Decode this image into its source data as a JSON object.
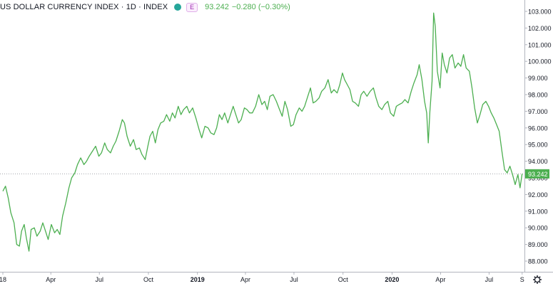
{
  "header": {
    "title": "US DOLLAR CURRENCY INDEX · 1D · INDEX",
    "badge": "E",
    "last_value": "93.242",
    "change": "−0.280 (−0.30%)",
    "colors": {
      "text_up": "#4caf50",
      "badge": "#9c27b0",
      "dot": "#26a69a"
    }
  },
  "chart_data": {
    "type": "line",
    "title": "US DOLLAR CURRENCY INDEX · 1D · INDEX",
    "xlabel": "",
    "ylabel": "",
    "ylim": [
      88.0,
      103.0
    ],
    "xlim": [
      "2018-01-01",
      "2020-08-31"
    ],
    "x_tick_labels": [
      {
        "date": "2018-01-01",
        "label": "18"
      },
      {
        "date": "2018-04-01",
        "label": "Apr"
      },
      {
        "date": "2018-07-01",
        "label": "Jul"
      },
      {
        "date": "2018-10-01",
        "label": "Oct"
      },
      {
        "date": "2019-01-01",
        "label": "2019"
      },
      {
        "date": "2019-04-01",
        "label": "Apr"
      },
      {
        "date": "2019-07-01",
        "label": "Jul"
      },
      {
        "date": "2019-10-01",
        "label": "Oct"
      },
      {
        "date": "2020-01-01",
        "label": "2020"
      },
      {
        "date": "2020-04-01",
        "label": "Apr"
      },
      {
        "date": "2020-07-01",
        "label": "Jul"
      },
      {
        "date": "2020-09-01",
        "label": "S"
      }
    ],
    "y_tick_labels": [
      "88.000",
      "89.000",
      "90.000",
      "91.000",
      "92.000",
      "93.000",
      "94.000",
      "95.000",
      "96.000",
      "97.000",
      "98.000",
      "99.000",
      "100.000",
      "101.000",
      "102.000",
      "103.000"
    ],
    "last_value_label": "93.242",
    "last_value": 93.242,
    "grid": false,
    "series": [
      {
        "color": "#4caf50",
        "points": [
          [
            "2018-01-01",
            92.2
          ],
          [
            "2018-01-06",
            92.5
          ],
          [
            "2018-01-11",
            91.8
          ],
          [
            "2018-01-16",
            90.9
          ],
          [
            "2018-01-22",
            90.3
          ],
          [
            "2018-01-27",
            89.0
          ],
          [
            "2018-02-01",
            88.9
          ],
          [
            "2018-02-05",
            89.8
          ],
          [
            "2018-02-10",
            90.2
          ],
          [
            "2018-02-14",
            89.4
          ],
          [
            "2018-02-19",
            88.6
          ],
          [
            "2018-02-23",
            89.9
          ],
          [
            "2018-03-01",
            90.0
          ],
          [
            "2018-03-06",
            89.5
          ],
          [
            "2018-03-12",
            89.8
          ],
          [
            "2018-03-17",
            90.3
          ],
          [
            "2018-03-22",
            89.8
          ],
          [
            "2018-03-27",
            89.3
          ],
          [
            "2018-04-02",
            90.2
          ],
          [
            "2018-04-08",
            89.7
          ],
          [
            "2018-04-13",
            89.9
          ],
          [
            "2018-04-18",
            89.6
          ],
          [
            "2018-04-23",
            90.7
          ],
          [
            "2018-04-29",
            91.5
          ],
          [
            "2018-05-05",
            92.4
          ],
          [
            "2018-05-10",
            93.0
          ],
          [
            "2018-05-16",
            93.3
          ],
          [
            "2018-05-21",
            93.8
          ],
          [
            "2018-05-27",
            94.2
          ],
          [
            "2018-06-02",
            93.8
          ],
          [
            "2018-06-07",
            94.0
          ],
          [
            "2018-06-12",
            94.3
          ],
          [
            "2018-06-18",
            94.6
          ],
          [
            "2018-06-24",
            94.9
          ],
          [
            "2018-06-30",
            94.3
          ],
          [
            "2018-07-05",
            94.5
          ],
          [
            "2018-07-11",
            95.1
          ],
          [
            "2018-07-16",
            94.7
          ],
          [
            "2018-07-22",
            94.5
          ],
          [
            "2018-07-27",
            94.9
          ],
          [
            "2018-08-01",
            95.2
          ],
          [
            "2018-08-07",
            95.8
          ],
          [
            "2018-08-13",
            96.5
          ],
          [
            "2018-08-17",
            96.3
          ],
          [
            "2018-08-22",
            95.5
          ],
          [
            "2018-08-28",
            94.9
          ],
          [
            "2018-09-03",
            95.3
          ],
          [
            "2018-09-08",
            94.7
          ],
          [
            "2018-09-14",
            94.8
          ],
          [
            "2018-09-19",
            94.4
          ],
          [
            "2018-09-25",
            94.1
          ],
          [
            "2018-09-30",
            94.9
          ],
          [
            "2018-10-04",
            95.5
          ],
          [
            "2018-10-09",
            95.8
          ],
          [
            "2018-10-14",
            95.1
          ],
          [
            "2018-10-19",
            95.9
          ],
          [
            "2018-10-24",
            96.3
          ],
          [
            "2018-10-30",
            96.4
          ],
          [
            "2018-11-04",
            96.8
          ],
          [
            "2018-11-10",
            96.4
          ],
          [
            "2018-11-15",
            96.9
          ],
          [
            "2018-11-20",
            96.6
          ],
          [
            "2018-11-26",
            97.3
          ],
          [
            "2018-12-01",
            96.8
          ],
          [
            "2018-12-06",
            97.1
          ],
          [
            "2018-12-12",
            97.3
          ],
          [
            "2018-12-17",
            96.9
          ],
          [
            "2018-12-23",
            97.2
          ],
          [
            "2018-12-29",
            96.6
          ],
          [
            "2019-01-04",
            95.9
          ],
          [
            "2019-01-09",
            95.4
          ],
          [
            "2019-01-15",
            96.1
          ],
          [
            "2019-01-21",
            96.0
          ],
          [
            "2019-01-26",
            95.7
          ],
          [
            "2019-02-01",
            95.6
          ],
          [
            "2019-02-06",
            96.0
          ],
          [
            "2019-02-11",
            96.8
          ],
          [
            "2019-02-16",
            96.5
          ],
          [
            "2019-02-21",
            96.9
          ],
          [
            "2019-02-27",
            96.3
          ],
          [
            "2019-03-04",
            96.8
          ],
          [
            "2019-03-09",
            97.3
          ],
          [
            "2019-03-14",
            96.8
          ],
          [
            "2019-03-19",
            96.3
          ],
          [
            "2019-03-24",
            96.5
          ],
          [
            "2019-03-30",
            97.2
          ],
          [
            "2019-04-04",
            97.1
          ],
          [
            "2019-04-09",
            96.9
          ],
          [
            "2019-04-14",
            96.9
          ],
          [
            "2019-04-20",
            97.3
          ],
          [
            "2019-04-26",
            98.0
          ],
          [
            "2019-05-02",
            97.4
          ],
          [
            "2019-05-07",
            97.6
          ],
          [
            "2019-05-12",
            97.1
          ],
          [
            "2019-05-17",
            97.9
          ],
          [
            "2019-05-23",
            98.0
          ],
          [
            "2019-05-29",
            97.6
          ],
          [
            "2019-06-04",
            97.1
          ],
          [
            "2019-06-09",
            96.7
          ],
          [
            "2019-06-14",
            97.6
          ],
          [
            "2019-06-19",
            97.1
          ],
          [
            "2019-06-25",
            96.1
          ],
          [
            "2019-06-30",
            96.2
          ],
          [
            "2019-07-05",
            96.8
          ],
          [
            "2019-07-11",
            97.2
          ],
          [
            "2019-07-16",
            97.0
          ],
          [
            "2019-07-21",
            97.3
          ],
          [
            "2019-07-26",
            97.8
          ],
          [
            "2019-08-01",
            98.4
          ],
          [
            "2019-08-06",
            97.5
          ],
          [
            "2019-08-11",
            97.6
          ],
          [
            "2019-08-17",
            97.8
          ],
          [
            "2019-08-22",
            98.2
          ],
          [
            "2019-08-28",
            98.4
          ],
          [
            "2019-09-03",
            98.9
          ],
          [
            "2019-09-09",
            98.1
          ],
          [
            "2019-09-14",
            98.3
          ],
          [
            "2019-09-20",
            98.1
          ],
          [
            "2019-09-25",
            98.6
          ],
          [
            "2019-09-30",
            99.3
          ],
          [
            "2019-10-04",
            98.9
          ],
          [
            "2019-10-09",
            98.6
          ],
          [
            "2019-10-14",
            98.3
          ],
          [
            "2019-10-19",
            97.6
          ],
          [
            "2019-10-24",
            97.5
          ],
          [
            "2019-10-30",
            97.3
          ],
          [
            "2019-11-04",
            98.0
          ],
          [
            "2019-11-09",
            98.2
          ],
          [
            "2019-11-15",
            97.9
          ],
          [
            "2019-11-21",
            98.2
          ],
          [
            "2019-11-27",
            98.4
          ],
          [
            "2019-12-02",
            97.8
          ],
          [
            "2019-12-07",
            97.3
          ],
          [
            "2019-12-13",
            97.1
          ],
          [
            "2019-12-18",
            97.4
          ],
          [
            "2019-12-24",
            97.6
          ],
          [
            "2019-12-29",
            96.9
          ],
          [
            "2020-01-04",
            96.7
          ],
          [
            "2020-01-09",
            97.3
          ],
          [
            "2020-01-14",
            97.4
          ],
          [
            "2020-01-20",
            97.5
          ],
          [
            "2020-01-25",
            97.7
          ],
          [
            "2020-01-31",
            97.5
          ],
          [
            "2020-02-06",
            98.2
          ],
          [
            "2020-02-11",
            98.7
          ],
          [
            "2020-02-17",
            99.2
          ],
          [
            "2020-02-21",
            99.8
          ],
          [
            "2020-02-26",
            98.9
          ],
          [
            "2020-03-02",
            97.6
          ],
          [
            "2020-03-06",
            96.9
          ],
          [
            "2020-03-09",
            95.1
          ],
          [
            "2020-03-12",
            97.0
          ],
          [
            "2020-03-16",
            98.8
          ],
          [
            "2020-03-19",
            102.9
          ],
          [
            "2020-03-22",
            102.1
          ],
          [
            "2020-03-26",
            99.4
          ],
          [
            "2020-03-31",
            98.4
          ],
          [
            "2020-04-04",
            100.5
          ],
          [
            "2020-04-08",
            99.8
          ],
          [
            "2020-04-13",
            99.3
          ],
          [
            "2020-04-18",
            100.2
          ],
          [
            "2020-04-23",
            100.4
          ],
          [
            "2020-04-28",
            99.6
          ],
          [
            "2020-05-04",
            99.9
          ],
          [
            "2020-05-09",
            99.7
          ],
          [
            "2020-05-14",
            100.4
          ],
          [
            "2020-05-19",
            99.6
          ],
          [
            "2020-05-25",
            99.4
          ],
          [
            "2020-05-30",
            98.4
          ],
          [
            "2020-06-04",
            97.2
          ],
          [
            "2020-06-09",
            96.3
          ],
          [
            "2020-06-14",
            96.8
          ],
          [
            "2020-06-19",
            97.4
          ],
          [
            "2020-06-25",
            97.6
          ],
          [
            "2020-06-30",
            97.3
          ],
          [
            "2020-07-05",
            96.9
          ],
          [
            "2020-07-10",
            96.6
          ],
          [
            "2020-07-15",
            96.2
          ],
          [
            "2020-07-20",
            95.8
          ],
          [
            "2020-07-25",
            94.6
          ],
          [
            "2020-07-30",
            93.5
          ],
          [
            "2020-08-04",
            93.3
          ],
          [
            "2020-08-09",
            93.7
          ],
          [
            "2020-08-14",
            93.2
          ],
          [
            "2020-08-19",
            92.6
          ],
          [
            "2020-08-24",
            93.2
          ],
          [
            "2020-08-28",
            92.4
          ],
          [
            "2020-09-01",
            93.24
          ]
        ]
      }
    ]
  }
}
